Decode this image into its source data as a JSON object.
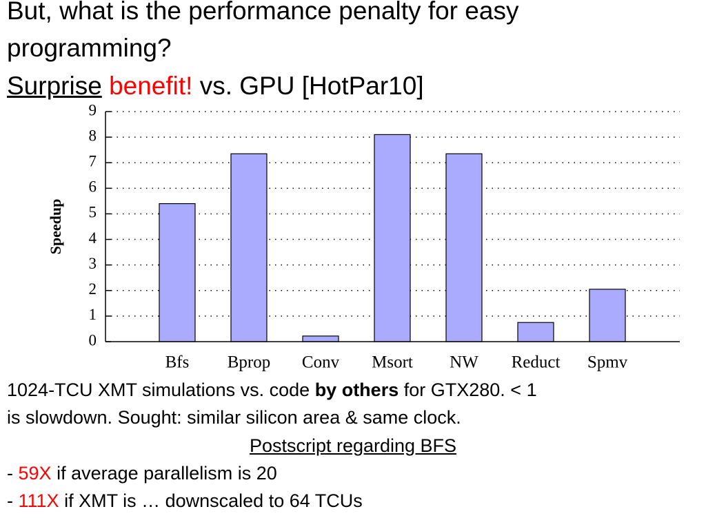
{
  "slide": {
    "title_line1": "But, what is the performance penalty for easy",
    "title_line2": "programming?",
    "title_line3": {
      "part1": "Surprise",
      "part2": "benefit!",
      "part3": "vs. GPU [HotPar10]"
    },
    "body": {
      "line1": {
        "part1": "1024-TCU XMT simulations vs. code",
        "part2": "by others",
        "part3": "for GTX280. < 1"
      },
      "line2": "is slowdown. Sought: similar silicon area & same clock.",
      "postscript": "Postscript regarding BFS",
      "bullet1": {
        "dash": "-",
        "highlight": "59X",
        "text": "if average parallelism is 20"
      },
      "bullet2": {
        "dash": "-",
        "highlight": "111X",
        "text": "if XMT is … downscaled to 64 TCUs"
      }
    }
  },
  "chart_data": {
    "type": "bar",
    "y_label": "Speedup",
    "categories": [
      "Bfs",
      "Bprop",
      "Conv",
      "Msort",
      "NW",
      "Reduct",
      "Spmv"
    ],
    "values": [
      5.4,
      7.35,
      0.22,
      8.1,
      7.35,
      0.75,
      2.05
    ],
    "color": "#aaaaff",
    "ylim": [
      0,
      9
    ],
    "yticks": [
      0,
      1,
      2,
      3,
      4,
      5,
      6,
      7,
      8,
      9
    ],
    "grid": true
  }
}
